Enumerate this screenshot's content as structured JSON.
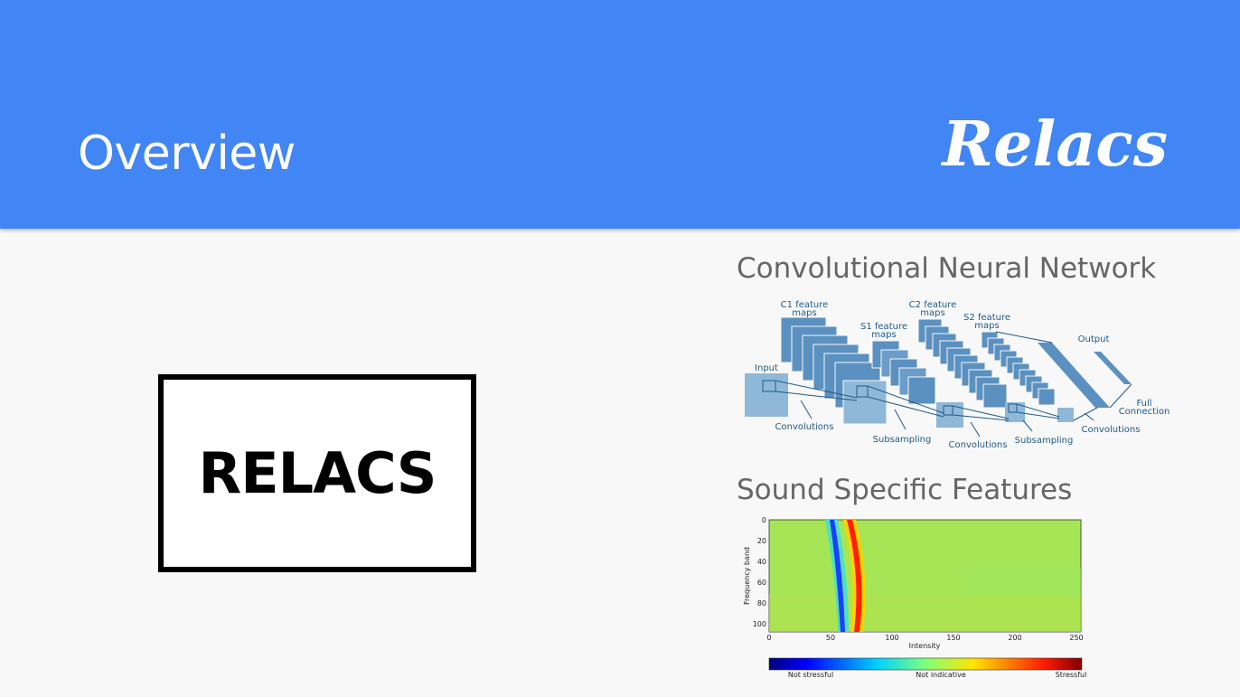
{
  "header": {
    "title": "Overview",
    "brand": "Relacs",
    "bg_color": "#4285f4"
  },
  "main": {
    "logo_box_text": "RELACS"
  },
  "cnn": {
    "title": "Convolutional Neural Network",
    "labels": {
      "c1": [
        "C1 feature",
        "maps"
      ],
      "s1": [
        "S1 feature",
        "maps"
      ],
      "c2": [
        "C2 feature",
        "maps"
      ],
      "s2": [
        "S2 feature",
        "maps"
      ],
      "input": "Input",
      "output": "Output",
      "full": [
        "Full",
        "Connection"
      ],
      "conv1": "Convolutions",
      "sub1": "Subsampling",
      "conv2": "Convolutions",
      "sub2": "Subsampling",
      "conv3": "Convolutions"
    }
  },
  "sound": {
    "title": "Sound Specific Features",
    "chart_data": {
      "type": "heatmap",
      "xlabel": "Intensity",
      "ylabel": "Frequency band",
      "x_ticks": [
        "0",
        "50",
        "100",
        "150",
        "200",
        "250"
      ],
      "y_ticks": [
        "0",
        "20",
        "40",
        "60",
        "80",
        "100"
      ],
      "xlim": [
        0,
        255
      ],
      "ylim": [
        0,
        108
      ],
      "colorbar_labels": [
        "Not stressful",
        "Not indicative",
        "Stressful"
      ]
    }
  }
}
